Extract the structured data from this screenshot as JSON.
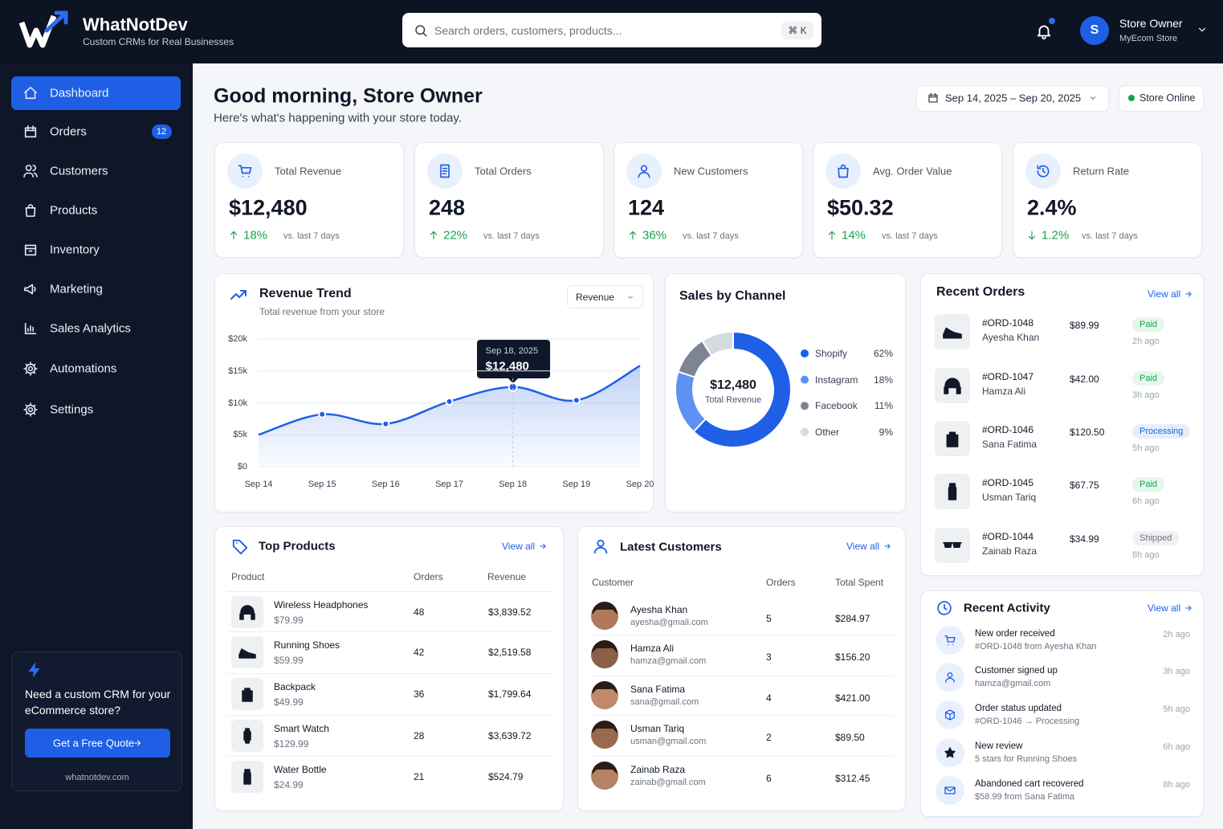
{
  "header": {
    "brand": "WhatNotDev",
    "tagline": "Custom CRMs for Real Businesses",
    "search_placeholder": "Search orders, customers, products...",
    "search_shortcut": "⌘ K",
    "avatar_initial": "S",
    "user_name": "Store Owner",
    "store_name": "MyEcom Store"
  },
  "sidebar": {
    "nav": [
      {
        "label": "Dashboard",
        "active": true
      },
      {
        "label": "Orders",
        "badge": 12
      },
      {
        "label": "Customers"
      },
      {
        "label": "Products"
      },
      {
        "label": "Inventory"
      },
      {
        "label": "Marketing"
      },
      {
        "label": "Sales Analytics"
      },
      {
        "label": "Automations"
      },
      {
        "label": "Settings"
      }
    ],
    "promo": {
      "title": "Need a custom CRM for your eCommerce store?",
      "button": "Get a Free Quote",
      "url": "whatnotdev.com"
    }
  },
  "greeting": {
    "title": "Good morning, Store Owner",
    "subtitle": "Here's what's happening with your store today.",
    "date_range": "Sep 14, 2025 – Sep 20, 2025",
    "status": "Store Online"
  },
  "kpis": [
    {
      "label": "Total Revenue",
      "value": "$12,480",
      "change": "18%",
      "trend": "up",
      "compare": "vs. last 7 days"
    },
    {
      "label": "Total Orders",
      "value": "248",
      "change": "22%",
      "trend": "up",
      "compare": "vs. last 7 days"
    },
    {
      "label": "New Customers",
      "value": "124",
      "change": "36%",
      "trend": "up",
      "compare": "vs. last 7 days"
    },
    {
      "label": "Avg. Order Value",
      "value": "$50.32",
      "change": "14%",
      "trend": "up",
      "compare": "vs. last 7 days"
    },
    {
      "label": "Return Rate",
      "value": "2.4%",
      "change": "1.2%",
      "trend": "down",
      "compare": "vs. last 7 days"
    }
  ],
  "chart_data": [
    {
      "type": "line",
      "title": "Revenue Trend",
      "subtitle": "Total revenue from your store",
      "selector": "Revenue",
      "categories": [
        "Sep 14",
        "Sep 15",
        "Sep 16",
        "Sep 17",
        "Sep 18",
        "Sep 19",
        "Sep 20"
      ],
      "values": [
        5000,
        8200,
        6700,
        10200,
        12480,
        10400,
        15800
      ],
      "value_labels": [
        null,
        null,
        null,
        null,
        "$12,480",
        null,
        null
      ],
      "tooltip_date": "Sep 18, 2025",
      "color": "#1f5fe6",
      "ylim": [
        0,
        20000
      ],
      "yticks": [
        {
          "value": 0,
          "label": "$0"
        },
        {
          "value": 5000,
          "label": "$5k"
        },
        {
          "value": 10000,
          "label": "$10k"
        },
        {
          "value": 15000,
          "label": "$15k"
        },
        {
          "value": 20000,
          "label": "$20k"
        }
      ],
      "grid": true
    },
    {
      "type": "pie",
      "title": "Sales by Channel",
      "categories": [
        "Shopify",
        "Instagram",
        "Facebook",
        "Other"
      ],
      "values": [
        62,
        18,
        11,
        9
      ],
      "value_labels": [
        "62%",
        "18%",
        "11%",
        "9%"
      ],
      "colors": [
        "#1f5fe6",
        "#5e91f2",
        "#7d8593",
        "#d6dae1"
      ],
      "center_value": "$12,480",
      "center_label": "Total Revenue"
    }
  ],
  "recent_orders": {
    "title": "Recent Orders",
    "view_all": "View all",
    "rows": [
      {
        "id": "#ORD-1048",
        "customer": "Ayesha Khan",
        "amount": "$89.99",
        "status": "Paid",
        "status_color": "#16a34a",
        "status_bg": "#e6f6ec",
        "time": "2h ago"
      },
      {
        "id": "#ORD-1047",
        "customer": "Hamza Ali",
        "amount": "$42.00",
        "status": "Paid",
        "status_color": "#16a34a",
        "status_bg": "#e6f6ec",
        "time": "3h ago"
      },
      {
        "id": "#ORD-1046",
        "customer": "Sana Fatima",
        "amount": "$120.50",
        "status": "Processing",
        "status_color": "#1f5fe6",
        "status_bg": "#e6eefd",
        "time": "5h ago"
      },
      {
        "id": "#ORD-1045",
        "customer": "Usman Tariq",
        "amount": "$67.75",
        "status": "Paid",
        "status_color": "#16a34a",
        "status_bg": "#e6f6ec",
        "time": "6h ago"
      },
      {
        "id": "#ORD-1044",
        "customer": "Zainab Raza",
        "amount": "$34.99",
        "status": "Shipped",
        "status_color": "#6b7280",
        "status_bg": "#eef0f3",
        "time": "8h ago"
      }
    ]
  },
  "top_products": {
    "title": "Top Products",
    "view_all": "View all",
    "columns": [
      "Product",
      "Orders",
      "Revenue"
    ],
    "rows": [
      {
        "name": "Wireless Headphones",
        "price": "$79.99",
        "orders": "48",
        "revenue": "$3,839.52"
      },
      {
        "name": "Running Shoes",
        "price": "$59.99",
        "orders": "42",
        "revenue": "$2,519.58"
      },
      {
        "name": "Backpack",
        "price": "$49.99",
        "orders": "36",
        "revenue": "$1,799.64"
      },
      {
        "name": "Smart Watch",
        "price": "$129.99",
        "orders": "28",
        "revenue": "$3,639.72"
      },
      {
        "name": "Water Bottle",
        "price": "$24.99",
        "orders": "21",
        "revenue": "$524.79"
      }
    ]
  },
  "latest_customers": {
    "title": "Latest Customers",
    "view_all": "View all",
    "columns": [
      "Customer",
      "Orders",
      "Total Spent"
    ],
    "rows": [
      {
        "name": "Ayesha Khan",
        "email": "ayesha@gmail.com",
        "orders": "5",
        "spent": "$284.97"
      },
      {
        "name": "Hamza Ali",
        "email": "hamza@gmail.com",
        "orders": "3",
        "spent": "$156.20"
      },
      {
        "name": "Sana Fatima",
        "email": "sana@gmail.com",
        "orders": "4",
        "spent": "$421.00"
      },
      {
        "name": "Usman Tariq",
        "email": "usman@gmail.com",
        "orders": "2",
        "spent": "$89.50"
      },
      {
        "name": "Zainab Raza",
        "email": "zainab@gmail.com",
        "orders": "6",
        "spent": "$312.45"
      }
    ]
  },
  "recent_activity": {
    "title": "Recent Activity",
    "view_all": "View all",
    "rows": [
      {
        "title": "New order received",
        "detail": "#ORD-1048 from Ayesha Khan",
        "time": "2h ago"
      },
      {
        "title": "Customer signed up",
        "detail": "hamza@gmail.com",
        "time": "3h ago"
      },
      {
        "title": "Order status updated",
        "detail": "#ORD-1046 → Processing",
        "time": "5h ago"
      },
      {
        "title": "New review",
        "detail": "5 stars for Running Shoes",
        "time": "6h ago"
      },
      {
        "title": "Abandoned cart recovered",
        "detail": "$58.99 from Sana Fatima",
        "time": "8h ago"
      }
    ]
  }
}
